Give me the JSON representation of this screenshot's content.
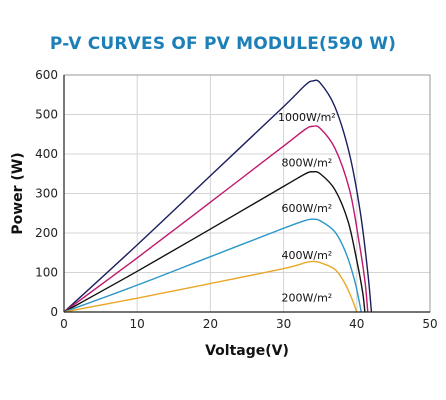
{
  "chart_data": {
    "type": "line",
    "title": "P-V CURVES OF PV MODULE(590 W)",
    "xlabel": "Voltage(V)",
    "ylabel": "Power (W)",
    "xlim": [
      0,
      50
    ],
    "ylim": [
      0,
      600
    ],
    "xticks": [
      0,
      10,
      20,
      30,
      40,
      50
    ],
    "yticks": [
      0,
      100,
      200,
      300,
      400,
      500,
      600
    ],
    "grid": true,
    "series": [
      {
        "name": "1000W/m²",
        "color": "#1b1f5e",
        "points": [
          [
            0,
            0
          ],
          [
            10,
            170
          ],
          [
            20,
            345
          ],
          [
            30,
            520
          ],
          [
            33,
            575
          ],
          [
            34,
            585
          ],
          [
            35,
            580
          ],
          [
            37,
            520
          ],
          [
            39,
            400
          ],
          [
            40.5,
            250
          ],
          [
            41.5,
            100
          ],
          [
            42,
            0
          ]
        ]
      },
      {
        "name": "800W/m²",
        "color": "#c0186c",
        "points": [
          [
            0,
            0
          ],
          [
            10,
            137
          ],
          [
            20,
            278
          ],
          [
            30,
            420
          ],
          [
            33,
            463
          ],
          [
            34,
            470
          ],
          [
            35,
            465
          ],
          [
            37,
            415
          ],
          [
            39,
            310
          ],
          [
            40.2,
            190
          ],
          [
            41.1,
            80
          ],
          [
            41.5,
            0
          ]
        ]
      },
      {
        "name": "600W/m²",
        "color": "#111111",
        "points": [
          [
            0,
            0
          ],
          [
            10,
            103
          ],
          [
            20,
            210
          ],
          [
            30,
            318
          ],
          [
            33,
            350
          ],
          [
            34,
            355
          ],
          [
            35,
            350
          ],
          [
            37,
            310
          ],
          [
            38.8,
            230
          ],
          [
            40,
            130
          ],
          [
            40.8,
            50
          ],
          [
            41.1,
            0
          ]
        ]
      },
      {
        "name": "400W/m²",
        "color": "#2a96c9",
        "points": [
          [
            0,
            0
          ],
          [
            10,
            68
          ],
          [
            20,
            140
          ],
          [
            30,
            212
          ],
          [
            33,
            232
          ],
          [
            34,
            235
          ],
          [
            35,
            231
          ],
          [
            37,
            203
          ],
          [
            38.5,
            150
          ],
          [
            39.7,
            80
          ],
          [
            40.4,
            20
          ],
          [
            40.6,
            0
          ]
        ]
      },
      {
        "name": "200W/m²",
        "color": "#e8a828",
        "points": [
          [
            0,
            0
          ],
          [
            10,
            35
          ],
          [
            20,
            72
          ],
          [
            30,
            110
          ],
          [
            33,
            125
          ],
          [
            34,
            128
          ],
          [
            35,
            125
          ],
          [
            37,
            108
          ],
          [
            38.3,
            75
          ],
          [
            39.3,
            35
          ],
          [
            39.9,
            5
          ],
          [
            40,
            0
          ]
        ]
      }
    ]
  }
}
